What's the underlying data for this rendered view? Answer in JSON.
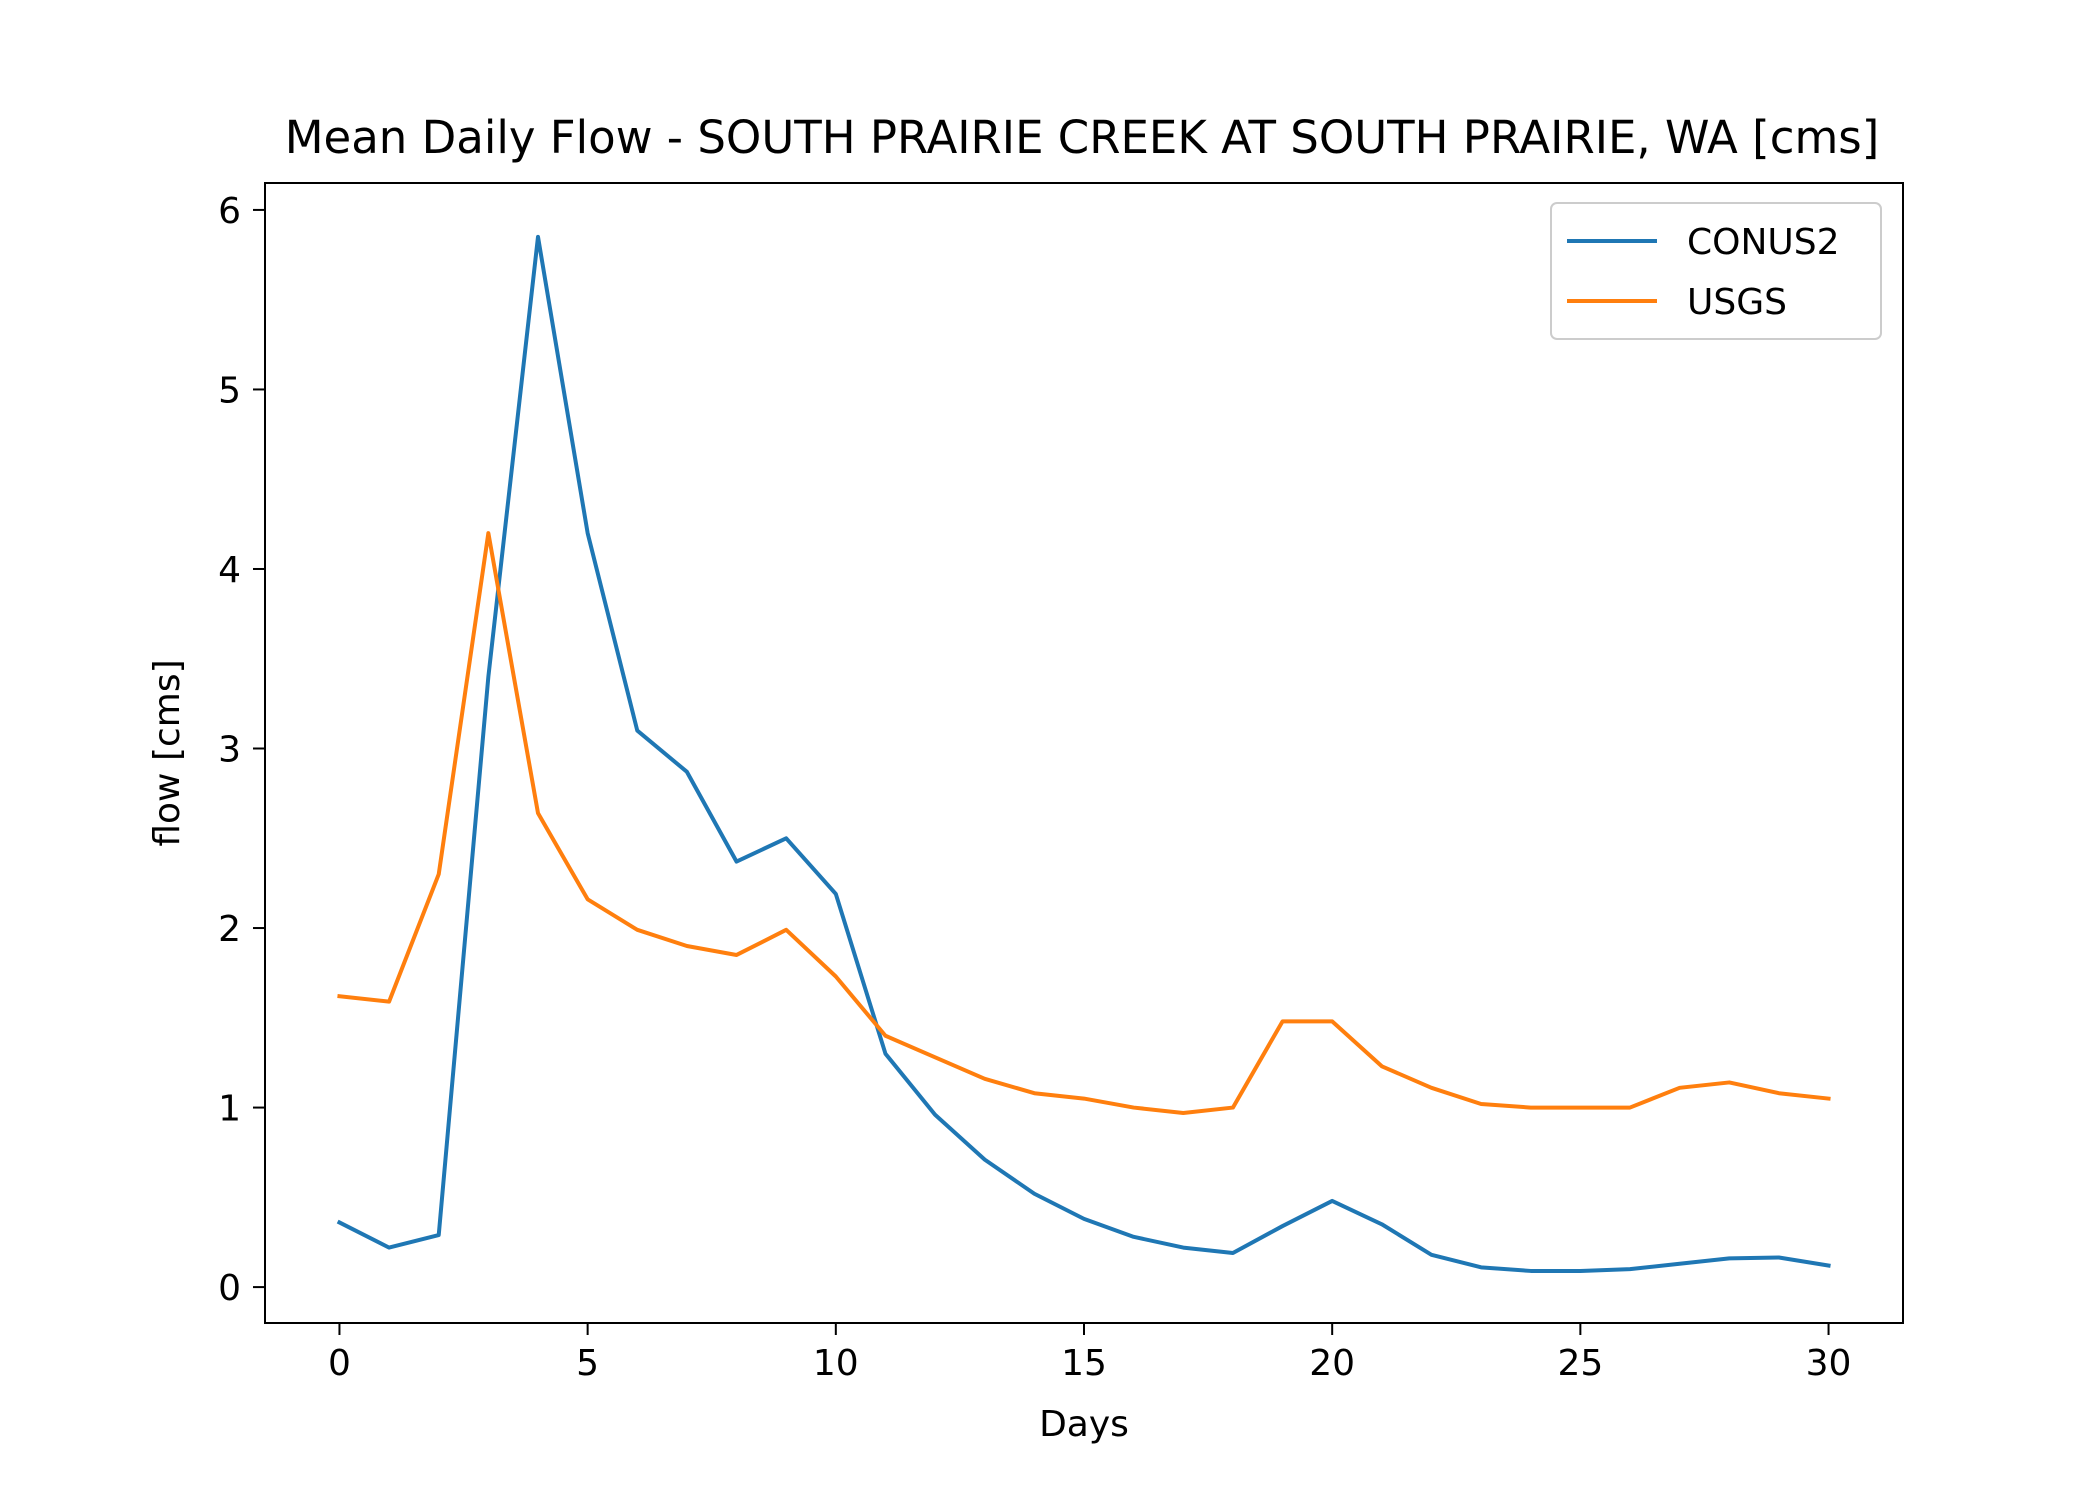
{
  "chart_data": {
    "type": "line",
    "title": "Mean Daily Flow - SOUTH PRAIRIE CREEK AT SOUTH PRAIRIE, WA [cms]",
    "xlabel": "Days",
    "ylabel": "flow [cms]",
    "xlim": [
      -1.5,
      31.5
    ],
    "ylim": [
      -0.2,
      6.15
    ],
    "xticks": [
      0,
      5,
      10,
      15,
      20,
      25,
      30
    ],
    "yticks": [
      0,
      1,
      2,
      3,
      4,
      5,
      6
    ],
    "grid": false,
    "legend_position": "top-right",
    "x": [
      0,
      1,
      2,
      3,
      4,
      5,
      6,
      7,
      8,
      9,
      10,
      11,
      12,
      13,
      14,
      15,
      16,
      17,
      18,
      19,
      20,
      21,
      22,
      23,
      24,
      25,
      26,
      27,
      28,
      29,
      30
    ],
    "series": [
      {
        "name": "CONUS2",
        "color": "#1f77b4",
        "values": [
          0.36,
          0.22,
          0.29,
          3.4,
          5.85,
          4.2,
          3.1,
          2.87,
          2.37,
          2.5,
          2.19,
          1.3,
          0.96,
          0.71,
          0.52,
          0.38,
          0.28,
          0.22,
          0.19,
          0.34,
          0.48,
          0.35,
          0.18,
          0.11,
          0.09,
          0.09,
          0.1,
          0.13,
          0.16,
          0.165,
          0.12
        ]
      },
      {
        "name": "USGS",
        "color": "#ff7f0e",
        "values": [
          1.62,
          1.59,
          2.3,
          4.2,
          2.64,
          2.16,
          1.99,
          1.9,
          1.85,
          1.99,
          1.73,
          1.4,
          1.28,
          1.16,
          1.08,
          1.05,
          1.0,
          0.97,
          1.0,
          1.48,
          1.48,
          1.23,
          1.11,
          1.02,
          1.0,
          1.0,
          1.0,
          1.11,
          1.14,
          1.08,
          1.05
        ]
      }
    ]
  }
}
